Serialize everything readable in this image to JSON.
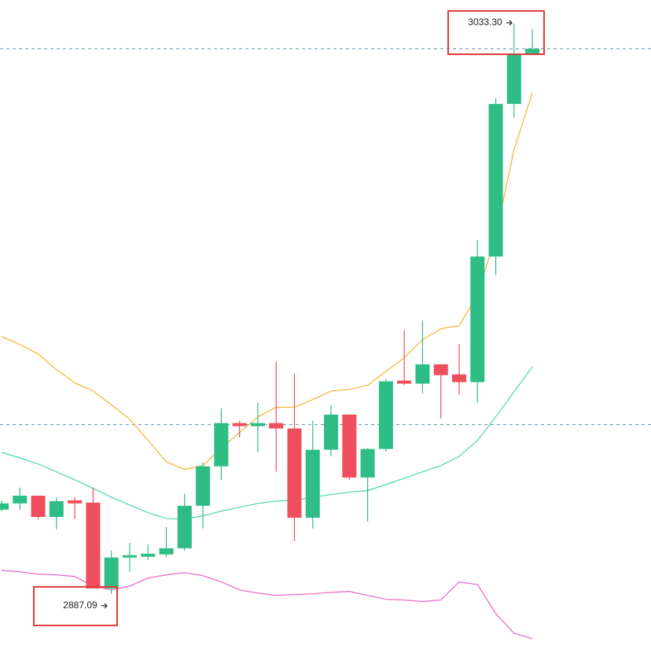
{
  "chart_data": {
    "type": "candlestick",
    "ylim": [
      2872.2,
      3039.4
    ],
    "up_color": "#2ebd85",
    "down_color": "#ef4f5d",
    "open": [
      2907.5,
      2909.1,
      2911.1,
      2905.6,
      2909.9,
      2909.3,
      2887.1,
      2895.1,
      2895.3,
      2895.9,
      2897.5,
      2908.5,
      2918.7,
      2929.9,
      2929.1,
      2929.9,
      2928.5,
      2905.4,
      2923.0,
      2932.1,
      2915.8,
      2923.2,
      2940.9,
      2940.1,
      2945.1,
      2942.5,
      2940.5,
      2973.0,
      3012.5,
      3025.2
    ],
    "high": [
      2909.9,
      2913.2,
      2911.1,
      2910.7,
      2910.7,
      2913.2,
      2896.9,
      2898.9,
      2898.5,
      2903.0,
      2911.6,
      2919.7,
      2933.7,
      2930.5,
      2935.2,
      2945.8,
      2942.7,
      2930.5,
      2934.6,
      2932.1,
      2923.4,
      2941.3,
      2953.9,
      2956.3,
      2945.1,
      2950.4,
      2977.3,
      3014.0,
      3033.3,
      3031.9
    ],
    "low": [
      2907.1,
      2907.5,
      2905.0,
      2902.4,
      2905.0,
      2887.09,
      2885.7,
      2891.4,
      2894.5,
      2895.3,
      2896.9,
      2902.6,
      2915.2,
      2926.2,
      2922.3,
      2917.3,
      2899.3,
      2902.6,
      2921.3,
      2915.2,
      2904.4,
      2922.5,
      2939.7,
      2937.6,
      2931.1,
      2937.2,
      2935.2,
      2968.2,
      3008.9,
      3025.2
    ],
    "close": [
      2909.1,
      2911.1,
      2905.6,
      2909.7,
      2909.1,
      2887.1,
      2895.1,
      2895.7,
      2896.1,
      2897.5,
      2908.5,
      2918.7,
      2929.9,
      2929.1,
      2929.9,
      2928.5,
      2905.4,
      2923.0,
      2932.1,
      2915.8,
      2923.2,
      2940.7,
      2940.1,
      2945.1,
      2942.3,
      2940.5,
      2973.0,
      3012.5,
      3025.4,
      3026.8
    ],
    "lines": [
      {
        "color": "#f4b22e",
        "values": [
          2952.3,
          2950.2,
          2947.8,
          2943.7,
          2940.3,
          2938.2,
          2934.6,
          2930.9,
          2925.4,
          2919.9,
          2917.9,
          2918.9,
          2923.4,
          2927.4,
          2931.5,
          2934.0,
          2934.0,
          2936.0,
          2938.2,
          2938.6,
          2939.7,
          2943.3,
          2946.8,
          2951.5,
          2954.3,
          2955.1,
          2963.1,
          2978.3,
          3000.7,
          3015.4
        ]
      },
      {
        "color": "#4dd4b4",
        "values": [
          2922.3,
          2920.9,
          2919.3,
          2917.3,
          2915.2,
          2913.0,
          2910.7,
          2908.7,
          2906.7,
          2905.2,
          2905.0,
          2905.9,
          2907.1,
          2908.1,
          2909.1,
          2909.7,
          2909.9,
          2910.7,
          2911.4,
          2912.0,
          2912.4,
          2914.0,
          2915.6,
          2917.3,
          2918.9,
          2921.3,
          2925.4,
          2931.5,
          2938.0,
          2944.5
        ]
      },
      {
        "color": "#e864c0",
        "values": [
          2891.8,
          2891.4,
          2890.8,
          2890.6,
          2890.2,
          2887.7,
          2886.7,
          2887.7,
          2889.8,
          2890.6,
          2891.2,
          2890.4,
          2888.8,
          2886.7,
          2885.9,
          2885.3,
          2885.5,
          2885.7,
          2886.1,
          2886.3,
          2885.3,
          2884.3,
          2884.1,
          2883.7,
          2884.1,
          2888.8,
          2888.1,
          2880.6,
          2875.5,
          2874.1
        ]
      }
    ],
    "price_lines": [
      3026.8,
      2929.5
    ],
    "annotations": [
      {
        "label": "3033.30",
        "value": 3033.3
      },
      {
        "label": "2887.09",
        "value": 2887.09
      }
    ]
  }
}
